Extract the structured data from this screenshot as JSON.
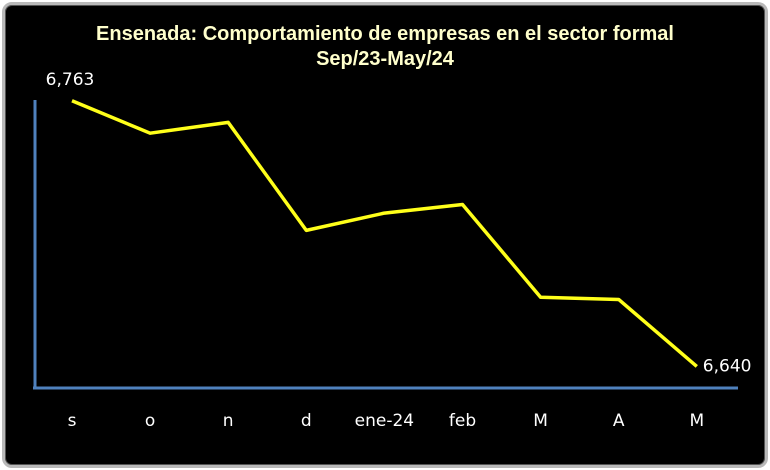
{
  "chart_data": {
    "type": "line",
    "title": "Ensenada: Comportamiento de empresas en el sector formal Sep/23-May/24",
    "categories": [
      "s",
      "o",
      "n",
      "d",
      "ene-24",
      "feb",
      "M",
      "A",
      "M"
    ],
    "series": [
      {
        "color": "#ffff1a",
        "values": [
          6763,
          6748,
          6753,
          6703,
          6711,
          6715,
          6672,
          6671,
          6640
        ],
        "value_labels": [
          "6,763",
          null,
          null,
          null,
          null,
          null,
          null,
          null,
          "6,640"
        ]
      }
    ],
    "ylim": [
      6630,
      6768
    ]
  }
}
